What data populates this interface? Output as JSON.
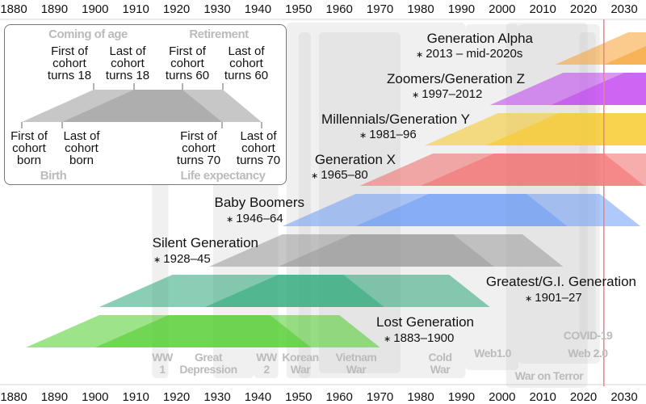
{
  "axis": {
    "ticks": [
      "1880",
      "1890",
      "1900",
      "1910",
      "1920",
      "1930",
      "1940",
      "1950",
      "1960",
      "1970",
      "1980",
      "1990",
      "2000",
      "2010",
      "2020",
      "2030"
    ]
  },
  "current_year_marker": {
    "year": 2025,
    "color": "#f08080"
  },
  "generations": [
    {
      "name": "Generation Alpha",
      "dates": "2013 – mid-2020s",
      "start": 2013,
      "end": 2025,
      "color": "#f5a030"
    },
    {
      "name": "Zoomers/Generation Z",
      "dates": "1997–2012",
      "start": 1997,
      "end": 2012,
      "color": "#c040f0"
    },
    {
      "name": "Millennials/Generation Y",
      "dates": "1981–96",
      "start": 1981,
      "end": 1996,
      "color": "#f8c820"
    },
    {
      "name": "Generation X",
      "dates": "1965–80",
      "start": 1965,
      "end": 1980,
      "color": "#f26a6a"
    },
    {
      "name": "Baby Boomers",
      "dates": "1946–64",
      "start": 1946,
      "end": 1964,
      "color": "#6c9cf5"
    },
    {
      "name": "Silent Generation",
      "dates": "1928–45",
      "start": 1928,
      "end": 1945,
      "color": "#999999"
    },
    {
      "name": "Greatest/G.I. Generation",
      "dates": "1901–27",
      "start": 1901,
      "end": 1927,
      "color": "#2aa878"
    },
    {
      "name": "Lost Generation",
      "dates": "1883–1900",
      "start": 1883,
      "end": 1900,
      "color": "#4ccc28"
    }
  ],
  "events": [
    {
      "label": "WW\n1",
      "start": 1914,
      "end": 1918
    },
    {
      "label": "Great\nDepression",
      "start": 1929,
      "end": 1939
    },
    {
      "label": "WW\n2",
      "start": 1939,
      "end": 1945
    },
    {
      "label": "Korean\nWar",
      "start": 1950,
      "end": 1953
    },
    {
      "label": "Vietnam\nWar",
      "start": 1955,
      "end": 1975
    },
    {
      "label": "Cold\nWar",
      "start": 1947,
      "end": 1991
    },
    {
      "label": "Web1.0",
      "start": 1991,
      "end": 2004
    },
    {
      "label": "War on Terror",
      "start": 2001,
      "end": 2021
    },
    {
      "label": "Web 2.0",
      "start": 2004,
      "end": 2024
    },
    {
      "label": "COVID-19",
      "start": 2019,
      "end": 2023
    }
  ],
  "legend": {
    "coming_of_age": "Coming of age",
    "retirement": "Retirement",
    "birth": "Birth",
    "life_expectancy": "Life expectancy",
    "first_18": "First of\ncohort\nturns 18",
    "last_18": "Last of\ncohort\nturns 18",
    "first_60": "First of\ncohort\nturns 60",
    "last_60": "Last of\ncohort\nturns 60",
    "first_born": "First of\ncohort\nborn",
    "last_born": "Last of\ncohort\nborn",
    "first_70": "First of\ncohort\nturns 70",
    "last_70": "Last of\ncohort\nturns 70"
  }
}
